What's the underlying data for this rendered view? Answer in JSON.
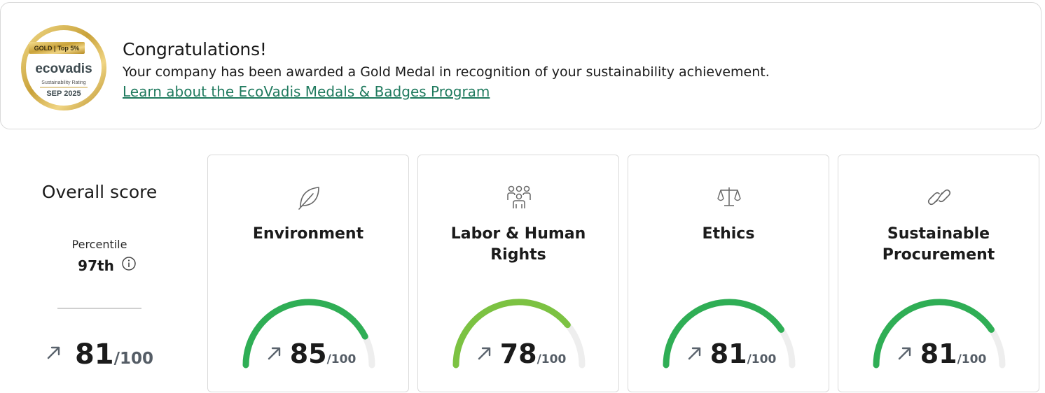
{
  "banner": {
    "medal": {
      "tier_text": "GOLD | Top 5%",
      "brand_text": "ecovadis",
      "subtitle_text": "Sustainability Rating",
      "date_text": "SEP 2025"
    },
    "title": "Congratulations!",
    "message": "Your company has been awarded a Gold Medal in recognition of your sustainability achievement.",
    "link_text": "Learn about the EcoVadis Medals & Badges Program"
  },
  "overall": {
    "title": "Overall score",
    "percentile_label": "Percentile",
    "percentile_value": "97th",
    "score": "81",
    "score_max": "/100"
  },
  "themes": [
    {
      "icon": "leaf-icon",
      "title": "Environment",
      "score": "85",
      "score_max": "/100",
      "value": 85,
      "color": "#2fae55"
    },
    {
      "icon": "people-group-icon",
      "title": "Labor & Human Rights",
      "score": "78",
      "score_max": "/100",
      "value": 78,
      "color": "#7cc242"
    },
    {
      "icon": "balance-scale-icon",
      "title": "Ethics",
      "score": "81",
      "score_max": "/100",
      "value": 81,
      "color": "#2fae55"
    },
    {
      "icon": "link-chain-icon",
      "title": "Sustainable Procurement",
      "score": "81",
      "score_max": "/100",
      "value": 81,
      "color": "#2fae55"
    }
  ],
  "colors": {
    "link": "#1f7a5e",
    "gauge_track": "#eeeeee",
    "arrow": "#5a636d",
    "medal_gold": "#c9a23a"
  }
}
